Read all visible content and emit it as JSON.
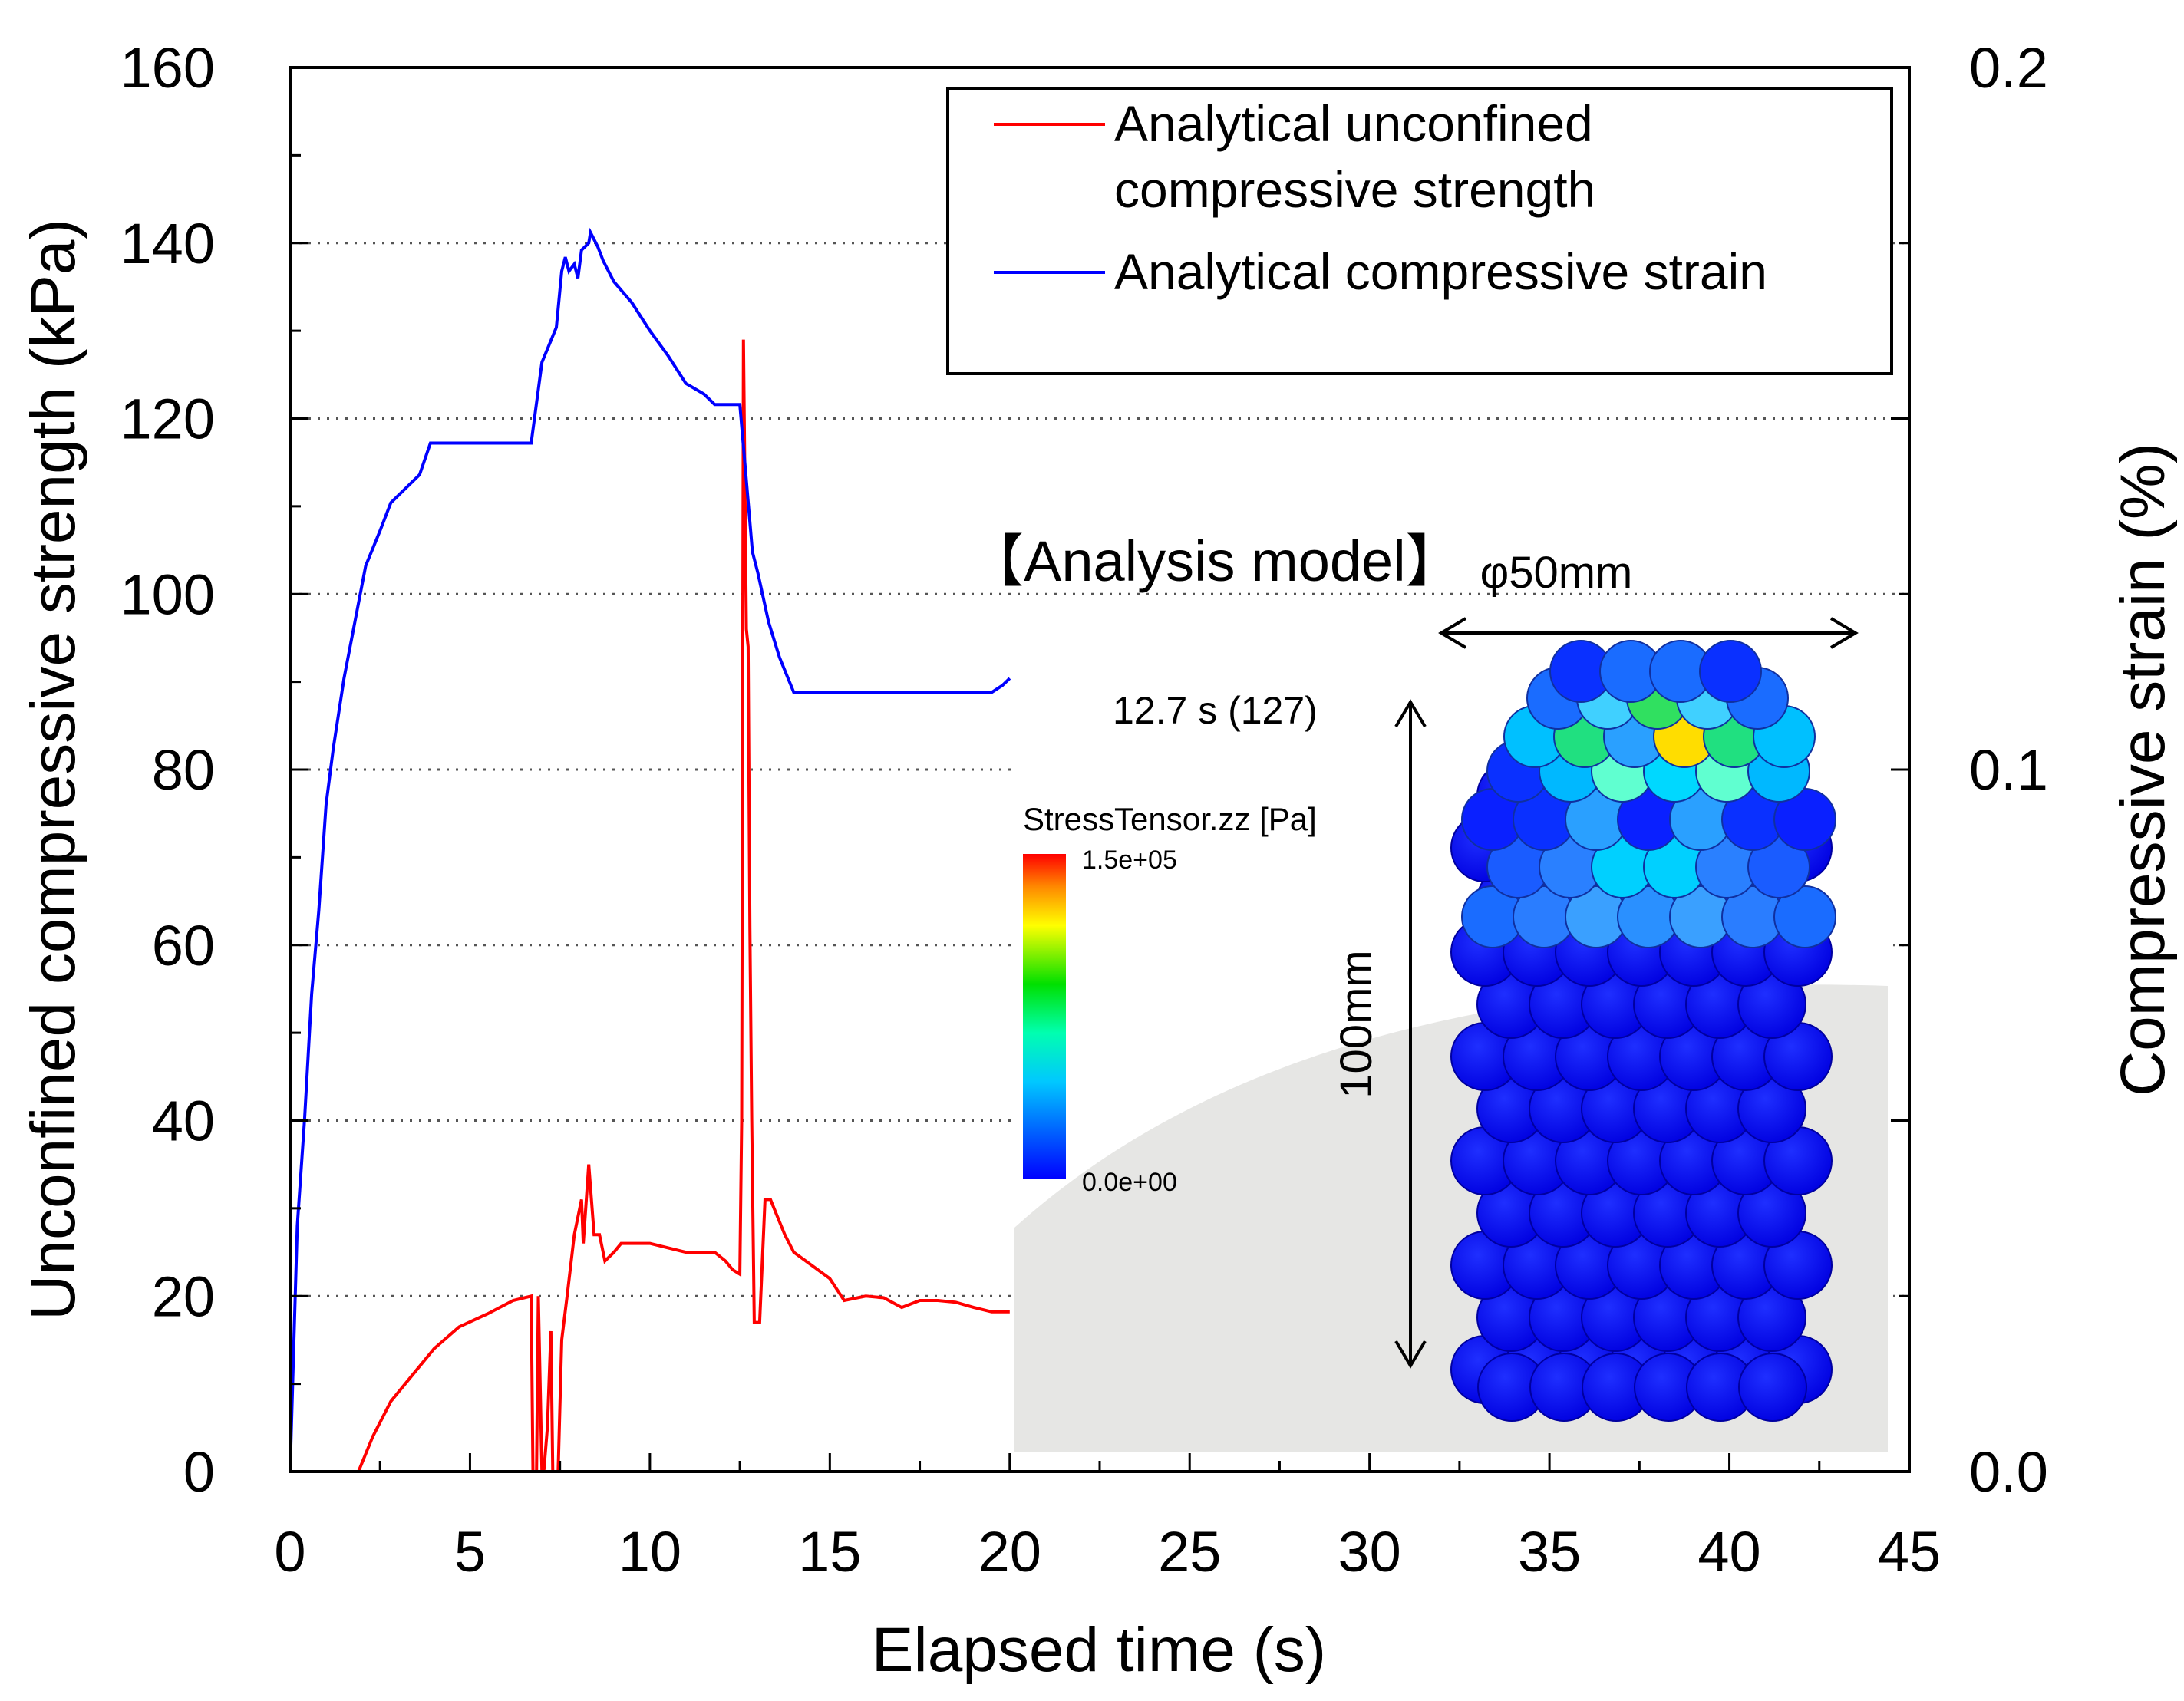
{
  "chart_data": {
    "type": "line",
    "xlabel": "Elapsed time (s)",
    "ylabel_left": "Unconfined compressive strength (kPa)",
    "ylabel_right": "Compressive strain (%)",
    "xlim": [
      0,
      45
    ],
    "ylim_left": [
      0,
      160
    ],
    "ylim_right": [
      0.0,
      0.2
    ],
    "x_ticks": [
      "0",
      "5",
      "10",
      "15",
      "20",
      "25",
      "30",
      "35",
      "40",
      "45"
    ],
    "y_ticks_left": [
      "0",
      "20",
      "40",
      "60",
      "80",
      "100",
      "120",
      "140",
      "160"
    ],
    "y_ticks_right": [
      "0.0",
      "0.1",
      "0.2"
    ],
    "grid": "horizontal-dotted",
    "legend": {
      "position": "top-right",
      "entries": [
        {
          "line1": "Analytical unconfined",
          "line2": "compressive strength",
          "color": "#ff0000"
        },
        {
          "line1": "Analytical compressive strain",
          "color": "#0000ff"
        }
      ]
    },
    "series": [
      {
        "name": "Analytical unconfined compressive strength",
        "axis": "left",
        "color": "#ff0000",
        "x": [
          0.0,
          1.9,
          2.3,
          2.8,
          3.4,
          4.0,
          4.7,
          5.5,
          6.2,
          6.7,
          6.75,
          6.8,
          6.85,
          6.9,
          7.0,
          7.05,
          7.15,
          7.25,
          7.3,
          7.45,
          7.55,
          7.7,
          7.9,
          8.1,
          8.15,
          8.3,
          8.45,
          8.6,
          8.75,
          9.0,
          9.2,
          9.5,
          10.0,
          11.0,
          11.8,
          12.1,
          12.3,
          12.5,
          12.55,
          12.6,
          12.68,
          12.73,
          12.78,
          12.83,
          12.9,
          12.95,
          13.05,
          13.2,
          13.35,
          13.55,
          13.75,
          14.0,
          14.5,
          15.0,
          15.4,
          16.0,
          16.5,
          17.0,
          17.5,
          18.0,
          18.5,
          19.0,
          19.5,
          20.0
        ],
        "values": [
          0,
          0,
          4,
          8,
          11,
          14,
          16.5,
          18,
          19.5,
          20,
          0,
          0,
          0,
          20,
          0,
          0,
          5,
          16,
          0,
          0,
          15,
          20,
          27,
          31,
          26,
          35,
          27,
          27,
          24,
          25,
          26,
          26,
          26,
          25,
          25,
          24,
          23,
          22.5,
          40,
          129,
          96,
          94,
          62,
          40,
          17,
          17,
          17,
          31,
          31,
          29,
          27,
          25,
          23.5,
          22,
          19.5,
          20,
          19.8,
          18.7,
          19.5,
          19.5,
          19.3,
          18.7,
          18.2,
          18.2
        ]
      },
      {
        "name": "Analytical compressive strain",
        "axis": "right",
        "color": "#0000ff",
        "x": [
          0.0,
          0.2,
          0.4,
          0.6,
          0.8,
          1.0,
          1.2,
          1.5,
          1.8,
          2.1,
          2.5,
          2.8,
          3.2,
          3.6,
          3.9,
          4.5,
          5.5,
          6.5,
          6.7,
          7.0,
          7.4,
          7.55,
          7.65,
          7.75,
          7.9,
          8.0,
          8.1,
          8.3,
          8.35,
          8.45,
          8.55,
          8.7,
          9.0,
          9.5,
          10.0,
          10.5,
          11.0,
          11.5,
          11.8,
          12.0,
          12.2,
          12.5,
          12.7,
          12.85,
          13.0,
          13.3,
          13.6,
          14.0,
          14.3,
          14.8,
          15.5,
          16.5,
          17.5,
          18.5,
          19.5,
          19.8,
          20.0
        ],
        "values": [
          0.0,
          0.035,
          0.05,
          0.068,
          0.08,
          0.095,
          0.103,
          0.113,
          0.121,
          0.129,
          0.134,
          0.138,
          0.14,
          0.142,
          0.1465,
          0.1465,
          0.1465,
          0.1465,
          0.1465,
          0.158,
          0.163,
          0.171,
          0.173,
          0.171,
          0.172,
          0.17,
          0.174,
          0.175,
          0.1765,
          0.1755,
          0.1745,
          0.1725,
          0.1695,
          0.1665,
          0.1625,
          0.159,
          0.155,
          0.1535,
          0.152,
          0.152,
          0.152,
          0.152,
          0.14,
          0.131,
          0.128,
          0.121,
          0.116,
          0.111,
          0.111,
          0.111,
          0.111,
          0.111,
          0.111,
          0.111,
          0.111,
          0.112,
          0.113
        ]
      }
    ],
    "inset": {
      "title": "【Analysis model】",
      "diameter_label": "φ50mm",
      "height_label": "100mm",
      "time_label": "12.7 s (127)",
      "colorbar": {
        "title": "StressTensor.zz [Pa]",
        "max_label": "1.5e+05",
        "min_label": "0.0e+00",
        "colors": [
          "#0000ff",
          "#00c8ff",
          "#00ffb0",
          "#00e000",
          "#ffff00",
          "#ff8800",
          "#ff0000"
        ]
      }
    }
  }
}
